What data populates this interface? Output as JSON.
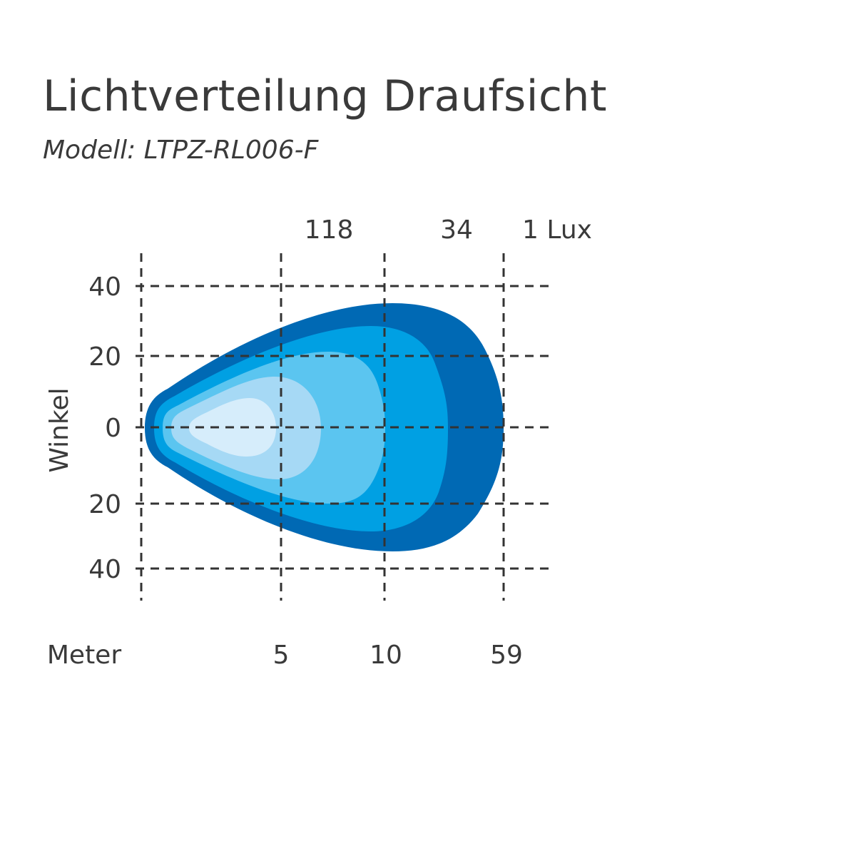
{
  "title": "Lichtverteilung Draufsicht",
  "subtitle": "Modell: LTPZ-RL006-F",
  "chart_data": {
    "type": "isolux-diagram",
    "y_axis": {
      "label": "Winkel",
      "tick_labels": [
        "40",
        "20",
        "0",
        "20",
        "40"
      ]
    },
    "x_axis": {
      "label": "Meter",
      "tick_labels": [
        "5",
        "10",
        "59"
      ]
    },
    "lux_labels": [
      "118",
      "34",
      "1 Lux"
    ],
    "grid": true,
    "zones": [
      {
        "color": "#0069b4"
      },
      {
        "color": "#00a0e3"
      },
      {
        "color": "#5bc5f0"
      },
      {
        "color": "#a6d9f5"
      },
      {
        "color": "#d6edfb"
      }
    ]
  }
}
